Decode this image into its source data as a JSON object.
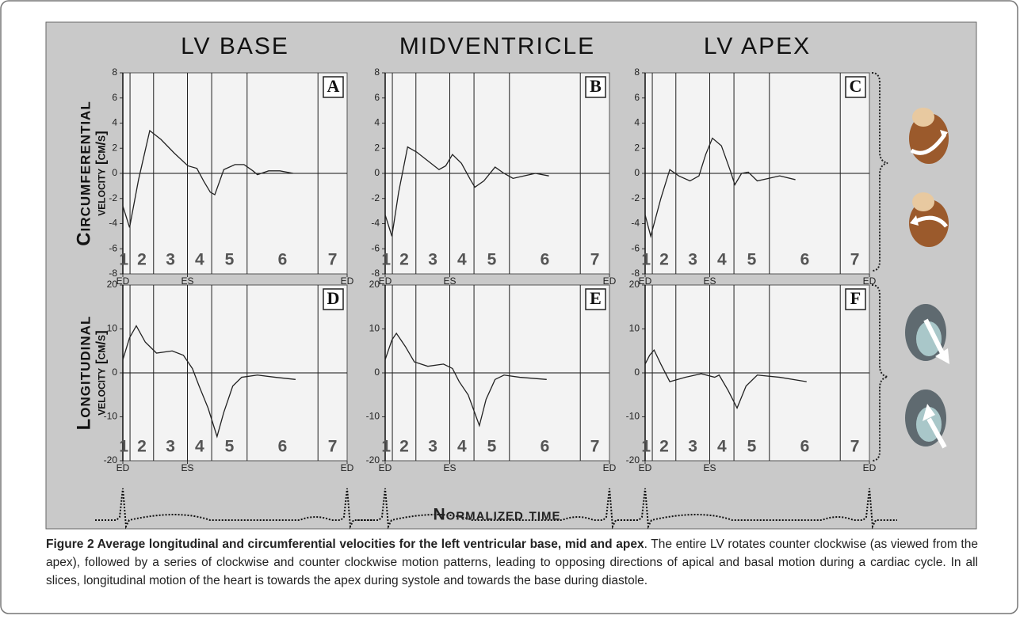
{
  "figure": {
    "columns": [
      "LV BASE",
      "MIDVENTRICLE",
      "LV APEX"
    ],
    "xlabel": "Normalized time",
    "caption": {
      "title": "Figure 2 Average longitudinal and circumferential velocities for the left ventricular base, mid and apex",
      "text": ". The entire LV rotates counter clockwise (as viewed from the apex), followed by a series of clockwise and counter clockwise motion patterns, leading to opposing directions of apical and basal motion during a cardiac cycle. In all slices, longitudinal motion of the heart is towards the apex during systole and towards the base during diastole."
    }
  },
  "chart_data": [
    {
      "type": "line",
      "panel_label": "A",
      "ylabel": [
        "Circumferential",
        "velocity [cm/s]"
      ],
      "color": "#222222",
      "x": [
        0.0,
        0.03,
        0.07,
        0.12,
        0.17,
        0.23,
        0.29,
        0.33,
        0.36,
        0.39,
        0.41,
        0.45,
        0.5,
        0.54,
        0.58,
        0.6,
        0.65,
        0.7,
        0.76
      ],
      "values": [
        -2.6,
        -4.3,
        -0.5,
        3.4,
        2.7,
        1.6,
        0.6,
        0.4,
        -0.6,
        -1.5,
        -1.7,
        0.3,
        0.7,
        0.7,
        0.2,
        -0.1,
        0.2,
        0.2,
        0.0
      ],
      "xlim": [
        0,
        1
      ],
      "xticks": [
        {
          "value": 0,
          "label": "ED"
        },
        {
          "value": 0.288,
          "label": "ES"
        },
        {
          "value": 1,
          "label": "ED"
        }
      ],
      "ylim": [
        -8,
        8
      ],
      "yticks": [
        -8,
        -6,
        -4,
        -2,
        0,
        2,
        4,
        6,
        8
      ],
      "phase_bounds": [
        0.032,
        0.137,
        0.288,
        0.396,
        0.554,
        0.87
      ],
      "phase_labels": [
        "1",
        "2",
        "3",
        "4",
        "5",
        "6",
        "7"
      ]
    },
    {
      "type": "line",
      "panel_label": "B",
      "color": "#222222",
      "x": [
        0,
        0.03,
        0.06,
        0.1,
        0.14,
        0.19,
        0.24,
        0.27,
        0.3,
        0.34,
        0.38,
        0.4,
        0.44,
        0.49,
        0.53,
        0.57,
        0.62,
        0.67,
        0.73
      ],
      "values": [
        -3.3,
        -5.0,
        -1.5,
        2.1,
        1.7,
        1.0,
        0.3,
        0.6,
        1.5,
        0.8,
        -0.5,
        -1.1,
        -0.6,
        0.5,
        0.0,
        -0.4,
        -0.2,
        0.0,
        -0.2
      ],
      "xlim": [
        0,
        1
      ],
      "xticks": [
        {
          "value": 0,
          "label": "ED"
        },
        {
          "value": 0.288,
          "label": "ES"
        },
        {
          "value": 1,
          "label": "ED"
        }
      ],
      "ylim": [
        -8,
        8
      ],
      "yticks": [
        -8,
        -6,
        -4,
        -2,
        0,
        2,
        4,
        6,
        8
      ],
      "phase_bounds": [
        0.032,
        0.137,
        0.288,
        0.396,
        0.554,
        0.87
      ],
      "phase_labels": [
        "1",
        "2",
        "3",
        "4",
        "5",
        "6",
        "7"
      ]
    },
    {
      "type": "line",
      "panel_label": "C",
      "color": "#222222",
      "x": [
        0,
        0.025,
        0.07,
        0.11,
        0.15,
        0.2,
        0.24,
        0.27,
        0.3,
        0.34,
        0.38,
        0.4,
        0.43,
        0.46,
        0.5,
        0.55,
        0.6,
        0.67
      ],
      "values": [
        -3.3,
        -5.0,
        -2.0,
        0.3,
        -0.2,
        -0.6,
        -0.2,
        1.5,
        2.8,
        2.2,
        0.2,
        -0.9,
        0.0,
        0.1,
        -0.6,
        -0.4,
        -0.2,
        -0.5
      ],
      "xlim": [
        0,
        1
      ],
      "xticks": [
        {
          "value": 0,
          "label": "ED"
        },
        {
          "value": 0.288,
          "label": "ES"
        },
        {
          "value": 1,
          "label": "ED"
        }
      ],
      "ylim": [
        -8,
        8
      ],
      "yticks": [
        -8,
        -6,
        -4,
        -2,
        0,
        2,
        4,
        6,
        8
      ],
      "phase_bounds": [
        0.032,
        0.137,
        0.288,
        0.396,
        0.554,
        0.87
      ],
      "phase_labels": [
        "1",
        "2",
        "3",
        "4",
        "5",
        "6",
        "7"
      ]
    },
    {
      "type": "line",
      "panel_label": "D",
      "ylabel": [
        "Longitudinal",
        "velocity [cm/s]"
      ],
      "color": "#222222",
      "x": [
        0,
        0.03,
        0.06,
        0.1,
        0.15,
        0.22,
        0.27,
        0.31,
        0.34,
        0.38,
        0.42,
        0.45,
        0.49,
        0.53,
        0.6,
        0.68,
        0.77
      ],
      "values": [
        3,
        8,
        10.7,
        7,
        4.5,
        5,
        4,
        1,
        -3,
        -8,
        -14.5,
        -9,
        -3,
        -1,
        -0.5,
        -1,
        -1.5
      ],
      "xlim": [
        0,
        1
      ],
      "xticks": [
        {
          "value": 0,
          "label": "ED"
        },
        {
          "value": 0.288,
          "label": "ES"
        },
        {
          "value": 1,
          "label": "ED"
        }
      ],
      "ylim": [
        -20,
        20
      ],
      "yticks": [
        -20,
        -10,
        0,
        10,
        20
      ],
      "phase_bounds": [
        0.032,
        0.137,
        0.288,
        0.396,
        0.554,
        0.87
      ],
      "phase_labels": [
        "1",
        "2",
        "3",
        "4",
        "5",
        "6",
        "7"
      ]
    },
    {
      "type": "line",
      "panel_label": "E",
      "color": "#222222",
      "x": [
        0,
        0.03,
        0.05,
        0.09,
        0.13,
        0.19,
        0.26,
        0.3,
        0.33,
        0.37,
        0.42,
        0.45,
        0.49,
        0.53,
        0.6,
        0.72
      ],
      "values": [
        3,
        7.5,
        9,
        6,
        2.5,
        1.5,
        2,
        1,
        -2,
        -5,
        -12,
        -6,
        -1.5,
        -0.5,
        -1,
        -1.5
      ],
      "xlim": [
        0,
        1
      ],
      "xticks": [
        {
          "value": 0,
          "label": "ED"
        },
        {
          "value": 0.288,
          "label": "ES"
        },
        {
          "value": 1,
          "label": "ED"
        }
      ],
      "ylim": [
        -20,
        20
      ],
      "yticks": [
        -20,
        -10,
        0,
        10,
        20
      ],
      "phase_bounds": [
        0.032,
        0.137,
        0.288,
        0.396,
        0.554,
        0.87
      ],
      "phase_labels": [
        "1",
        "2",
        "3",
        "4",
        "5",
        "6",
        "7"
      ]
    },
    {
      "type": "line",
      "panel_label": "F",
      "color": "#222222",
      "x": [
        0,
        0.02,
        0.04,
        0.07,
        0.11,
        0.18,
        0.25,
        0.31,
        0.33,
        0.37,
        0.41,
        0.45,
        0.5,
        0.6,
        0.72
      ],
      "values": [
        2,
        4,
        5.2,
        2,
        -2,
        -1,
        -0.2,
        -1,
        -0.5,
        -4,
        -8,
        -3,
        -0.5,
        -1,
        -2
      ],
      "xlim": [
        0,
        1
      ],
      "xticks": [
        {
          "value": 0,
          "label": "ED"
        },
        {
          "value": 0.288,
          "label": "ES"
        },
        {
          "value": 1,
          "label": "ED"
        }
      ],
      "ylim": [
        -20,
        20
      ],
      "yticks": [
        -20,
        -10,
        0,
        10,
        20
      ],
      "phase_bounds": [
        0.032,
        0.137,
        0.288,
        0.396,
        0.554,
        0.87
      ],
      "phase_labels": [
        "1",
        "2",
        "3",
        "4",
        "5",
        "6",
        "7"
      ]
    }
  ]
}
